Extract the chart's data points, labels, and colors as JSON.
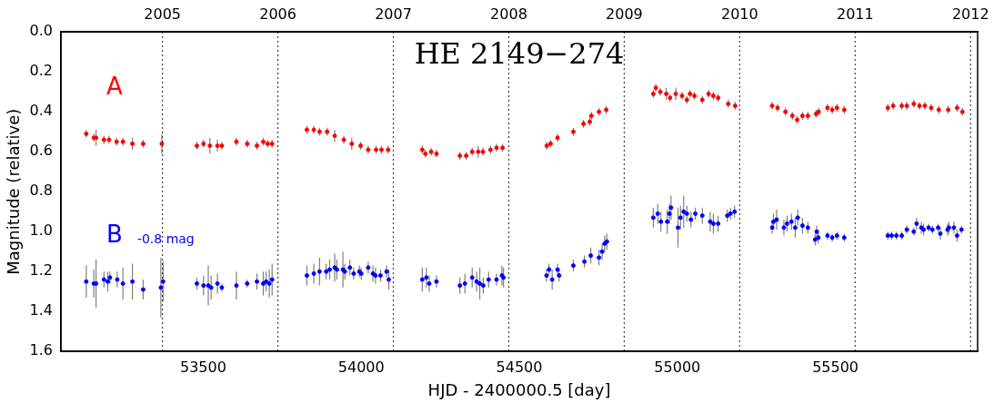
{
  "chart_data": {
    "type": "scatter",
    "title": "HE 2149−274",
    "xlabel": "HJD - 2400000.5 [day]",
    "ylabel": "Magnitude (relative)",
    "annotations": [
      "-0.8 mag"
    ],
    "xlim": [
      53050,
      55950
    ],
    "xticks": [
      53500,
      54000,
      54500,
      55000,
      55500
    ],
    "x2lim": [
      2004.121,
      2012.061
    ],
    "x2ticks": [
      2005,
      2006,
      2007,
      2008,
      2009,
      2010,
      2011,
      2012
    ],
    "ylim": [
      1.6,
      0.0
    ],
    "yticks": [
      {
        "value": 0,
        "label": "0.0"
      },
      0.2,
      0.4,
      0.6,
      0.8,
      {
        "value": 1,
        "label": "1.0"
      },
      1.2,
      1.4,
      1.6
    ],
    "grid": false,
    "legend": false,
    "marker": "circle",
    "ref_lines": [
      {
        "axis": "x2",
        "value": 2005,
        "line_style": "dotted",
        "color": "#000000"
      },
      {
        "axis": "x2",
        "value": 2006,
        "line_style": "dotted",
        "color": "#000000"
      },
      {
        "axis": "x2",
        "value": 2007,
        "line_style": "dotted",
        "color": "#000000"
      },
      {
        "axis": "x2",
        "value": 2008,
        "line_style": "dotted",
        "color": "#000000"
      },
      {
        "axis": "x2",
        "value": 2009,
        "line_style": "dotted",
        "color": "#000000"
      },
      {
        "axis": "x2",
        "value": 2010,
        "line_style": "dotted",
        "color": "#000000"
      },
      {
        "axis": "x2",
        "value": 2011,
        "line_style": "dotted",
        "color": "#000000"
      },
      {
        "axis": "x2",
        "value": 2012,
        "line_style": "dotted",
        "color": "#000000"
      }
    ],
    "series": [
      {
        "name": "A",
        "color": "#ff0000",
        "x": [
          53130,
          53154,
          53161,
          53186,
          53202,
          53226,
          53246,
          53276,
          53310,
          53369,
          53480,
          53501,
          53521,
          53545,
          53559,
          53605,
          53639,
          53670,
          53690,
          53704,
          53718,
          53828,
          53850,
          53868,
          53892,
          53916,
          53945,
          53970,
          53998,
          54022,
          54047,
          54064,
          54085,
          54193,
          54203,
          54221,
          54238,
          54312,
          54332,
          54351,
          54370,
          54385,
          54409,
          54428,
          54447,
          54587,
          54599,
          54621,
          54671,
          54703,
          54723,
          54728,
          54752,
          54775,
          54924,
          54932,
          54946,
          54965,
          54977,
          54995,
          55015,
          55030,
          55040,
          55054,
          55079,
          55099,
          55114,
          55129,
          55161,
          55183,
          55300,
          55317,
          55342,
          55364,
          55379,
          55396,
          55413,
          55439,
          55447,
          55475,
          55490,
          55505,
          55528,
          55666,
          55683,
          55710,
          55726,
          55748,
          55766,
          55783,
          55803,
          55827,
          55857,
          55885,
          55902
        ],
        "values": [
          0.51,
          0.53,
          0.53,
          0.54,
          0.54,
          0.55,
          0.55,
          0.56,
          0.56,
          0.56,
          0.57,
          0.56,
          0.57,
          0.57,
          0.57,
          0.55,
          0.56,
          0.57,
          0.55,
          0.56,
          0.56,
          0.49,
          0.49,
          0.5,
          0.5,
          0.52,
          0.54,
          0.56,
          0.57,
          0.59,
          0.59,
          0.59,
          0.59,
          0.59,
          0.61,
          0.6,
          0.61,
          0.62,
          0.62,
          0.6,
          0.6,
          0.6,
          0.59,
          0.58,
          0.58,
          0.57,
          0.56,
          0.53,
          0.5,
          0.46,
          0.45,
          0.42,
          0.4,
          0.39,
          0.31,
          0.28,
          0.3,
          0.31,
          0.33,
          0.31,
          0.32,
          0.34,
          0.31,
          0.32,
          0.34,
          0.31,
          0.32,
          0.33,
          0.36,
          0.37,
          0.37,
          0.38,
          0.4,
          0.42,
          0.44,
          0.42,
          0.42,
          0.41,
          0.4,
          0.38,
          0.39,
          0.38,
          0.39,
          0.38,
          0.37,
          0.37,
          0.37,
          0.36,
          0.37,
          0.37,
          0.38,
          0.39,
          0.39,
          0.38,
          0.4
        ],
        "errors": [
          0.02,
          0.02,
          0.04,
          0.02,
          0.02,
          0.02,
          0.02,
          0.03,
          0.02,
          0.05,
          0.02,
          0.02,
          0.04,
          0.03,
          0.02,
          0.02,
          0.02,
          0.02,
          0.02,
          0.02,
          0.02,
          0.02,
          0.02,
          0.02,
          0.02,
          0.03,
          0.02,
          0.03,
          0.02,
          0.02,
          0.02,
          0.02,
          0.02,
          0.02,
          0.02,
          0.02,
          0.02,
          0.02,
          0.02,
          0.02,
          0.03,
          0.02,
          0.02,
          0.02,
          0.02,
          0.02,
          0.02,
          0.02,
          0.02,
          0.02,
          0.02,
          0.02,
          0.02,
          0.02,
          0.02,
          0.02,
          0.02,
          0.03,
          0.02,
          0.03,
          0.02,
          0.02,
          0.02,
          0.02,
          0.02,
          0.02,
          0.02,
          0.02,
          0.02,
          0.02,
          0.02,
          0.02,
          0.02,
          0.02,
          0.02,
          0.02,
          0.02,
          0.02,
          0.02,
          0.02,
          0.02,
          0.02,
          0.02,
          0.02,
          0.02,
          0.02,
          0.02,
          0.02,
          0.02,
          0.02,
          0.02,
          0.02,
          0.02,
          0.02,
          0.02
        ]
      },
      {
        "name": "B",
        "color": "#0000ff",
        "x": [
          53130,
          53154,
          53161,
          53186,
          53198,
          53205,
          53228,
          53246,
          53276,
          53310,
          53366,
          53373,
          53480,
          53501,
          53516,
          53525,
          53545,
          53559,
          53605,
          53639,
          53670,
          53690,
          53699,
          53709,
          53718,
          53828,
          53850,
          53868,
          53889,
          53900,
          53916,
          53923,
          53942,
          53948,
          53964,
          53976,
          53994,
          54000,
          54022,
          54037,
          54045,
          54061,
          54080,
          54087,
          54193,
          54206,
          54215,
          54238,
          54312,
          54328,
          54351,
          54365,
          54375,
          54386,
          54403,
          54428,
          54445,
          54450,
          54586,
          54594,
          54604,
          54621,
          54626,
          54671,
          54706,
          54726,
          54752,
          54762,
          54770,
          54777,
          54924,
          54938,
          54948,
          54968,
          54975,
          54980,
          55002,
          55010,
          55020,
          55030,
          55043,
          55057,
          55079,
          55104,
          55114,
          55129,
          55158,
          55168,
          55181,
          55300,
          55304,
          55314,
          55337,
          55347,
          55361,
          55373,
          55381,
          55396,
          55413,
          55436,
          55441,
          55446,
          55475,
          55490,
          55505,
          55528,
          55666,
          55678,
          55693,
          55710,
          55726,
          55748,
          55757,
          55772,
          55779,
          55795,
          55807,
          55825,
          55832,
          55855,
          55859,
          55875,
          55885,
          55899
        ],
        "values": [
          1.25,
          1.26,
          1.26,
          1.24,
          1.25,
          1.23,
          1.24,
          1.26,
          1.25,
          1.29,
          1.28,
          1.25,
          1.26,
          1.27,
          1.27,
          1.28,
          1.26,
          1.28,
          1.27,
          1.26,
          1.25,
          1.26,
          1.25,
          1.26,
          1.24,
          1.22,
          1.21,
          1.2,
          1.2,
          1.19,
          1.18,
          1.19,
          1.19,
          1.2,
          1.18,
          1.21,
          1.2,
          1.21,
          1.18,
          1.21,
          1.22,
          1.22,
          1.2,
          1.24,
          1.24,
          1.23,
          1.26,
          1.25,
          1.27,
          1.26,
          1.23,
          1.25,
          1.26,
          1.27,
          1.24,
          1.24,
          1.22,
          1.23,
          1.22,
          1.19,
          1.24,
          1.19,
          1.22,
          1.17,
          1.15,
          1.12,
          1.13,
          1.1,
          1.06,
          1.05,
          0.93,
          0.91,
          0.95,
          0.95,
          0.91,
          0.88,
          0.98,
          0.93,
          0.9,
          0.91,
          0.94,
          0.91,
          0.92,
          0.95,
          0.96,
          0.96,
          0.92,
          0.91,
          0.9,
          0.98,
          0.95,
          0.94,
          0.98,
          0.96,
          0.95,
          0.98,
          0.93,
          0.97,
          0.98,
          1.04,
          1.0,
          1.03,
          1.02,
          1.03,
          1.02,
          1.03,
          1.02,
          1.02,
          1.02,
          1.02,
          0.99,
          1.0,
          0.96,
          0.98,
          0.99,
          0.98,
          0.99,
          0.98,
          1.01,
          0.99,
          0.98,
          0.98,
          1.02,
          0.99
        ],
        "errors": [
          0.08,
          0.07,
          0.12,
          0.04,
          0.05,
          0.03,
          0.04,
          0.08,
          0.09,
          0.05,
          0.15,
          0.1,
          0.03,
          0.05,
          0.1,
          0.06,
          0.05,
          0.02,
          0.07,
          0.02,
          0.04,
          0.06,
          0.05,
          0.07,
          0.08,
          0.05,
          0.05,
          0.07,
          0.04,
          0.05,
          0.07,
          0.05,
          0.09,
          0.04,
          0.04,
          0.03,
          0.03,
          0.03,
          0.03,
          0.04,
          0.04,
          0.03,
          0.03,
          0.05,
          0.06,
          0.05,
          0.04,
          0.03,
          0.04,
          0.05,
          0.05,
          0.05,
          0.08,
          0.04,
          0.04,
          0.03,
          0.05,
          0.05,
          0.03,
          0.03,
          0.05,
          0.03,
          0.03,
          0.03,
          0.03,
          0.04,
          0.04,
          0.04,
          0.04,
          0.04,
          0.05,
          0.05,
          0.05,
          0.06,
          0.05,
          0.06,
          0.1,
          0.06,
          0.08,
          0.04,
          0.04,
          0.03,
          0.04,
          0.05,
          0.05,
          0.04,
          0.03,
          0.03,
          0.03,
          0.03,
          0.04,
          0.05,
          0.04,
          0.04,
          0.04,
          0.05,
          0.04,
          0.04,
          0.03,
          0.03,
          0.03,
          0.03,
          0.02,
          0.02,
          0.02,
          0.02,
          0.02,
          0.02,
          0.02,
          0.02,
          0.02,
          0.02,
          0.03,
          0.03,
          0.03,
          0.02,
          0.02,
          0.02,
          0.03,
          0.03,
          0.03,
          0.03,
          0.03,
          0.02
        ]
      }
    ]
  }
}
